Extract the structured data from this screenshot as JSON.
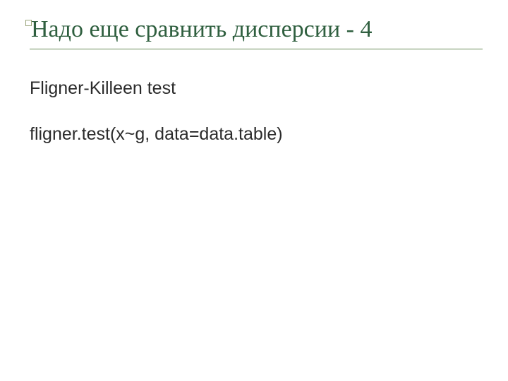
{
  "colors": {
    "title_color": "#2f5f3f",
    "rule_color": "#6b8c5a",
    "body_text_color": "#2b2b2b",
    "marker_border": "#9aa57a",
    "background": "#ffffff"
  },
  "typography": {
    "title_font_family": "Times New Roman, serif",
    "title_font_size_pt": 26,
    "body_font_family": "Arial, sans-serif",
    "body_font_size_pt": 19
  },
  "title": "Надо еще сравнить дисперсии - 4",
  "body_lines": {
    "line1": "Fligner-Killeen test",
    "line2": "fligner.test(x~g, data=data.table)"
  }
}
